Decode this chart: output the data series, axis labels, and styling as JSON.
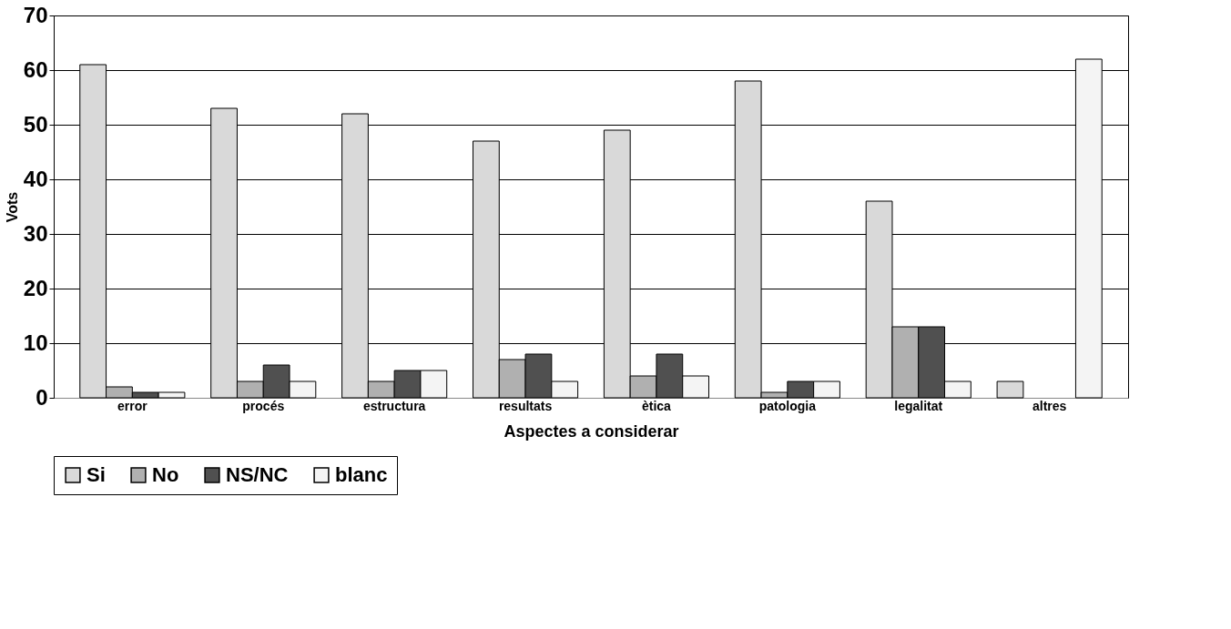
{
  "chart_data": {
    "type": "bar",
    "xlabel": "Aspectes a considerar",
    "ylabel": "Vots",
    "categories": [
      "error",
      "procés",
      "estructura",
      "resultats",
      "ètica",
      "patologia",
      "legalitat",
      "altres"
    ],
    "series": [
      {
        "name": "Si",
        "color": "#d9d9d9",
        "values": [
          61,
          53,
          52,
          47,
          49,
          58,
          36,
          3
        ]
      },
      {
        "name": "No",
        "color": "#b0b0b0",
        "values": [
          2,
          3,
          3,
          7,
          4,
          1,
          13,
          0
        ]
      },
      {
        "name": "NS/NC",
        "color": "#505050",
        "values": [
          1,
          6,
          5,
          8,
          8,
          3,
          13,
          0
        ]
      },
      {
        "name": "blanc",
        "color": "#f4f4f4",
        "values": [
          1,
          3,
          5,
          3,
          4,
          3,
          3,
          62
        ]
      }
    ],
    "ylim": [
      0,
      70
    ],
    "yticks": [
      0,
      10,
      20,
      30,
      40,
      50,
      60,
      70
    ],
    "grid": "y",
    "legend": "bottom"
  }
}
